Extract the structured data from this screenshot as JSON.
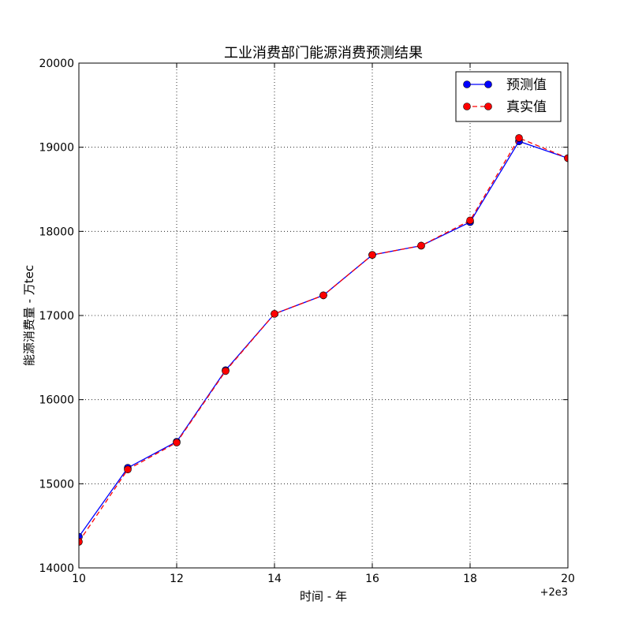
{
  "chart_data": {
    "type": "line",
    "title": "工业消费部门能源消费预测结果",
    "xlabel": "时间 - 年",
    "ylabel": "能源消费量 - 万tec",
    "x_offset_label": "+2e3",
    "xlim": [
      10,
      20
    ],
    "ylim": [
      14000,
      20000
    ],
    "x_ticks": [
      10,
      12,
      14,
      16,
      18,
      20
    ],
    "x_tick_labels": [
      "10",
      "12",
      "14",
      "16",
      "18",
      "20"
    ],
    "y_ticks": [
      14000,
      15000,
      16000,
      17000,
      18000,
      19000,
      20000
    ],
    "y_tick_labels": [
      "14000",
      "15000",
      "16000",
      "17000",
      "18000",
      "19000",
      "20000"
    ],
    "grid": true,
    "legend_position": "top-right",
    "x": [
      10,
      11,
      12,
      13,
      14,
      15,
      16,
      17,
      18,
      19,
      20
    ],
    "series": [
      {
        "name": "预测值",
        "color": "#0000ff",
        "line_style": "solid",
        "values": [
          14370,
          15190,
          15500,
          16350,
          17020,
          17240,
          17720,
          17830,
          18110,
          19070,
          18870
        ]
      },
      {
        "name": "真实值",
        "color": "#ff0000",
        "line_style": "dashed",
        "values": [
          14310,
          15170,
          15490,
          16340,
          17020,
          17240,
          17720,
          17830,
          18130,
          19110,
          18870
        ]
      }
    ]
  }
}
